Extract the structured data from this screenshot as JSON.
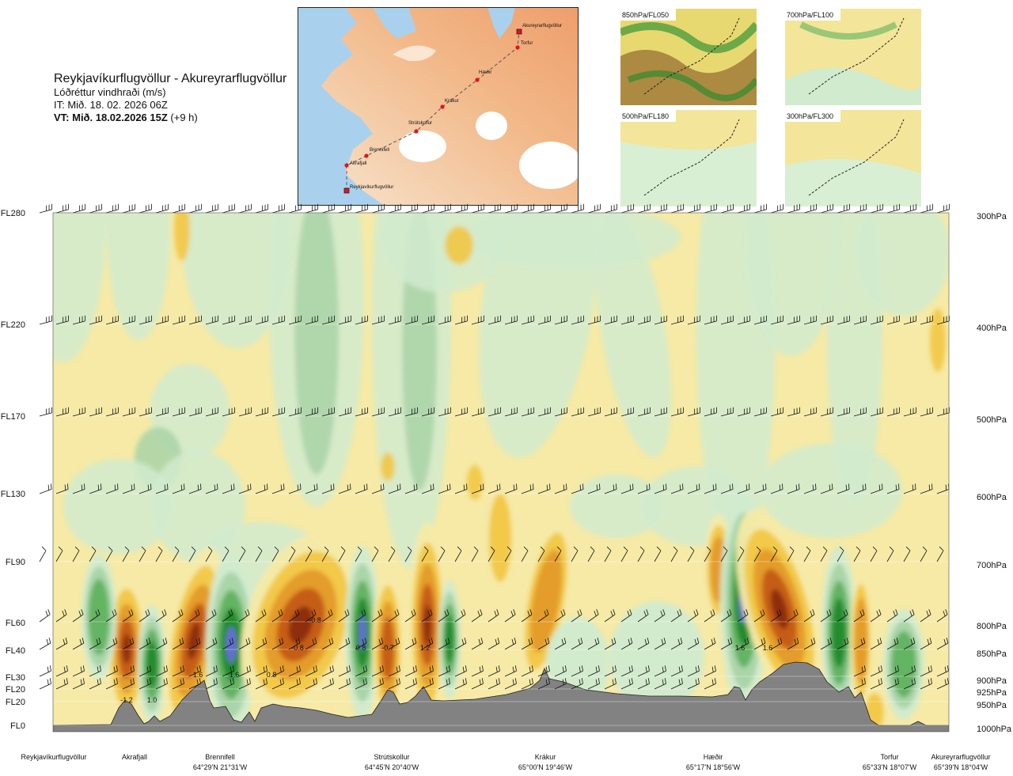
{
  "header": {
    "route": "Reykjavíkurflugvöllur - Akureyrarflugvöllur",
    "variable": "Lóðréttur vindhraði (m/s)",
    "issue_time": "IT: Mið. 18. 02. 2026 06Z",
    "valid_time": "VT: Mið. 18.02.2026 15Z",
    "lead": "(+9 h)"
  },
  "route_map": {
    "places": [
      "Akureyrarflugvöllur",
      "Torfur",
      "Hæðir",
      "Krákur",
      "Strútskollur",
      "Brennifell",
      "Akrafjall",
      "Reykjavíkurflugvöllur"
    ],
    "colors": {
      "sea": "#a9d1ee",
      "land_low": "#f7e3cc",
      "land_high": "#f0a877",
      "glacier": "#ffffff",
      "track": "#555555",
      "point": "#e8101c"
    }
  },
  "insets": [
    {
      "label": "850hPa/FL050"
    },
    {
      "label": "700hPa/FL100"
    },
    {
      "label": "500hPa/FL180"
    },
    {
      "label": "300hPa/FL300"
    }
  ],
  "chart_data": {
    "type": "heatmap",
    "xlabel": "",
    "ylabel": "",
    "y_levels_fl": [
      "FL280",
      "FL220",
      "FL170",
      "FL130",
      "FL90",
      "FL60",
      "FL40",
      "FL30",
      "FL20",
      "FL20",
      "FL0"
    ],
    "y_levels_hpa": [
      "300hPa",
      "400hPa",
      "500hPa",
      "600hPa",
      "700hPa",
      "800hPa",
      "850hPa",
      "900hPa",
      "925hPa",
      "950hPa",
      "1000hPa"
    ],
    "waypoints": [
      {
        "name": "Reykjavíkurflugvöllur",
        "coord": ""
      },
      {
        "name": "Akrafjall",
        "coord": ""
      },
      {
        "name": "Brennifell",
        "coord": "64°29'N 21°31'W"
      },
      {
        "name": "Strútskollur",
        "coord": "64°45'N 20°40'W"
      },
      {
        "name": "Krákur",
        "coord": "65°00'N 19°46'W"
      },
      {
        "name": "Hæðir",
        "coord": "65°17'N 18°56'W"
      },
      {
        "name": "Torfur",
        "coord": "65°33'N 18°07'W"
      },
      {
        "name": "Akureyrarflugvöllur",
        "coord": "65°39'N 18°04'W"
      }
    ],
    "value_labels": [
      "-1.2",
      "1.0",
      "1.6",
      "1.6",
      "0.8",
      "-0.8",
      "-0.8",
      "0.8",
      "-0.7",
      "1.2",
      "1.6",
      "1.6"
    ],
    "colors": {
      "strong_down": "#8b2c10",
      "down": "#c45a17",
      "mod_down": "#e39a2a",
      "weak_down": "#f2c744",
      "faint_down": "#f6eaa6",
      "neutral": "#fbfbe8",
      "faint_up": "#d1ebcf",
      "weak_up": "#a9d4a8",
      "mod_up": "#5fb25f",
      "up": "#1c8a2c",
      "strong_up": "#6a6ae0",
      "terrain": "#828282"
    }
  }
}
